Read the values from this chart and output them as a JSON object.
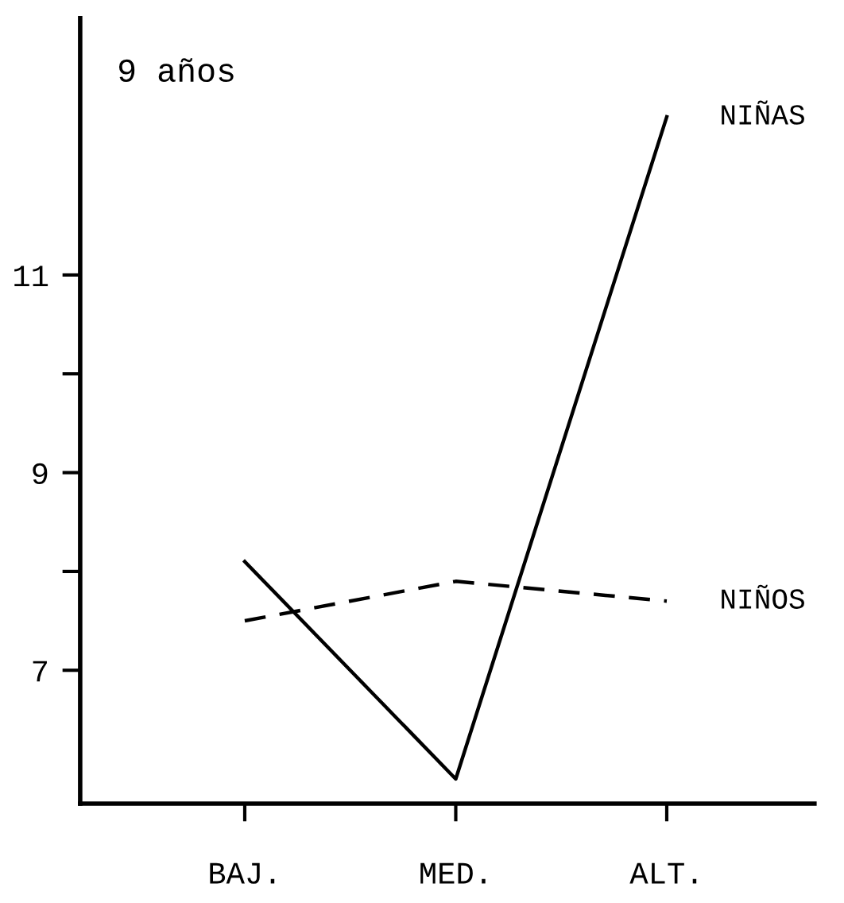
{
  "chart_data": {
    "type": "line",
    "title": "9 años",
    "categories": [
      "BAJ.",
      "MED.",
      "ALT."
    ],
    "series": [
      {
        "name": "NIÑAS",
        "color": "#000000",
        "values": [
          8.1,
          5.9,
          12.6
        ],
        "line_style": "solid"
      },
      {
        "name": "NIÑOS",
        "color": "#000000",
        "values": [
          7.5,
          7.9,
          7.7
        ],
        "line_style": "dashed"
      }
    ],
    "ylim": [
      5.65,
      13.6
    ],
    "yticks": [
      7,
      {
        "value": 8,
        "label": null
      },
      9,
      {
        "value": 10,
        "label": null
      },
      11
    ],
    "grid": false,
    "legend": false,
    "marker": "none"
  }
}
